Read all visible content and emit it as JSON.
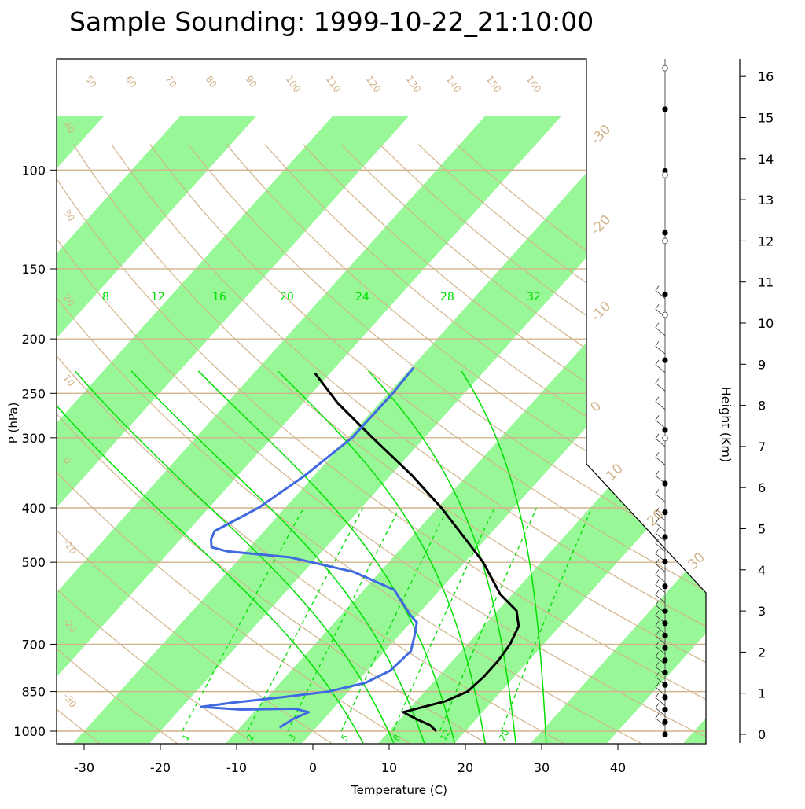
{
  "chart_data": {
    "type": "skew-t",
    "title": "Sample Sounding: 1999-10-22_21:10:00",
    "xlabel": "Temperature (C)",
    "ylabel": "P (hPa)",
    "right_label": "Height (Km)",
    "xlim": [
      -34,
      44
    ],
    "x_ticks": [
      "-30",
      "-20",
      "-10",
      "0",
      "10",
      "20",
      "30",
      "40"
    ],
    "pressure_ticks": [
      "100",
      "150",
      "200",
      "250",
      "300",
      "400",
      "500",
      "700",
      "850",
      "1000"
    ],
    "height_ticks": [
      "0",
      "1",
      "2",
      "3",
      "4",
      "5",
      "6",
      "7",
      "8",
      "9",
      "10",
      "11",
      "12",
      "13",
      "14",
      "15",
      "16"
    ],
    "dry_adiabat_labels": [
      "50",
      "60",
      "70",
      "80",
      "90",
      "100",
      "110",
      "120",
      "130",
      "140",
      "150",
      "160",
      "40",
      "30",
      "20",
      "10",
      "0",
      "-10",
      "-20",
      "-30"
    ],
    "isotherm_labels": [
      "-30",
      "-20",
      "-10",
      "0",
      "10",
      "20",
      "30"
    ],
    "moist_adiabat_labels": [
      "8",
      "12",
      "16",
      "20",
      "24",
      "28",
      "32"
    ],
    "mixing_ratio_labels": [
      "1",
      "2",
      "3",
      "5",
      "8",
      "12",
      "20"
    ],
    "colors": {
      "temperature": "#000000",
      "dewpoint": "#4169e1",
      "isotherm_band": "#98f898",
      "dry_adiabat": "#d2b48c",
      "moist_adiabat": "#00e000",
      "mixing_ratio": "#00e000"
    },
    "series": [
      {
        "kind": "temperature",
        "points": [
          [
            1000,
            16.2
          ],
          [
            975,
            14.6
          ],
          [
            950,
            12.0
          ],
          [
            925,
            9.6
          ],
          [
            900,
            12.2
          ],
          [
            885,
            13.8
          ],
          [
            850,
            15.6
          ],
          [
            800,
            16.0
          ],
          [
            750,
            16.0
          ],
          [
            700,
            15.6
          ],
          [
            650,
            14.6
          ],
          [
            610,
            12.5
          ],
          [
            570,
            8.4
          ],
          [
            500,
            2.4
          ],
          [
            450,
            -3.2
          ],
          [
            400,
            -9.5
          ],
          [
            350,
            -17.2
          ],
          [
            300,
            -26.8
          ],
          [
            260,
            -35.5
          ],
          [
            230,
            -42.0
          ]
        ]
      },
      {
        "kind": "dewpoint",
        "points": [
          [
            985,
            -4.8
          ],
          [
            950,
            -4.0
          ],
          [
            925,
            -2.8
          ],
          [
            912,
            -5.0
          ],
          [
            915,
            -12.0
          ],
          [
            905,
            -17.5
          ],
          [
            890,
            -14.0
          ],
          [
            870,
            -8.0
          ],
          [
            850,
            -2.6
          ],
          [
            820,
            1.2
          ],
          [
            780,
            3.0
          ],
          [
            720,
            3.4
          ],
          [
            680,
            2.2
          ],
          [
            640,
            0.8
          ],
          [
            620,
            -1.0
          ],
          [
            560,
            -6.0
          ],
          [
            520,
            -13.5
          ],
          [
            490,
            -23.5
          ],
          [
            478,
            -32.5
          ],
          [
            470,
            -35.0
          ],
          [
            455,
            -36.0
          ],
          [
            440,
            -36.5
          ],
          [
            400,
            -33.5
          ],
          [
            350,
            -31.2
          ],
          [
            300,
            -29.5
          ],
          [
            250,
            -29.4
          ],
          [
            225,
            -29.7
          ]
        ]
      }
    ],
    "height_markers_km": [
      0,
      0.3,
      0.6,
      0.9,
      1.2,
      1.5,
      1.8,
      2.1,
      2.4,
      2.7,
      3.0,
      3.6,
      4.2,
      4.8,
      5.4,
      6.1,
      7.4,
      9.1,
      10.7,
      12.2,
      13.7,
      15.2
    ]
  }
}
